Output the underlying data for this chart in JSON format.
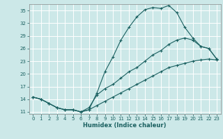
{
  "xlabel": "Humidex (Indice chaleur)",
  "bg_color": "#cce8e8",
  "grid_color": "#aaaaaa",
  "line_color": "#1a6060",
  "xmin": -0.5,
  "xmax": 23.5,
  "ymin": 10.5,
  "ymax": 36.5,
  "yticks": [
    11,
    14,
    17,
    20,
    23,
    26,
    29,
    32,
    35
  ],
  "xticks": [
    0,
    1,
    2,
    3,
    4,
    5,
    6,
    7,
    8,
    9,
    10,
    11,
    12,
    13,
    14,
    15,
    16,
    17,
    18,
    19,
    20,
    21,
    22,
    23
  ],
  "line1_x": [
    0,
    1,
    2,
    3,
    4,
    5,
    6,
    7,
    8,
    9,
    10,
    11,
    12,
    13,
    14,
    15,
    16,
    17,
    18,
    19,
    20,
    21,
    22,
    23
  ],
  "line1_y": [
    14.5,
    14.0,
    13.0,
    12.0,
    11.5,
    11.5,
    11.0,
    11.5,
    15.5,
    20.5,
    24.0,
    28.0,
    31.0,
    33.5,
    35.2,
    35.7,
    35.5,
    36.2,
    34.5,
    31.0,
    28.5,
    26.5,
    26.0,
    23.5
  ],
  "line2_x": [
    0,
    1,
    2,
    3,
    4,
    5,
    6,
    7,
    8,
    9,
    10,
    11,
    12,
    13,
    14,
    15,
    16,
    17,
    18,
    19,
    20,
    21,
    22,
    23
  ],
  "line2_y": [
    14.5,
    14.0,
    13.0,
    12.0,
    11.5,
    11.5,
    11.0,
    12.0,
    15.0,
    16.5,
    17.5,
    19.0,
    20.5,
    21.5,
    23.0,
    24.5,
    25.5,
    27.0,
    28.0,
    28.5,
    28.0,
    26.5,
    26.0,
    23.5
  ],
  "line3_x": [
    0,
    1,
    2,
    3,
    4,
    5,
    6,
    7,
    8,
    9,
    10,
    11,
    12,
    13,
    14,
    15,
    16,
    17,
    18,
    19,
    20,
    21,
    22,
    23
  ],
  "line3_y": [
    14.5,
    14.0,
    13.0,
    12.0,
    11.5,
    11.5,
    11.0,
    11.5,
    12.5,
    13.5,
    14.5,
    15.5,
    16.5,
    17.5,
    18.5,
    19.5,
    20.5,
    21.5,
    22.0,
    22.5,
    23.0,
    23.3,
    23.5,
    23.3
  ]
}
